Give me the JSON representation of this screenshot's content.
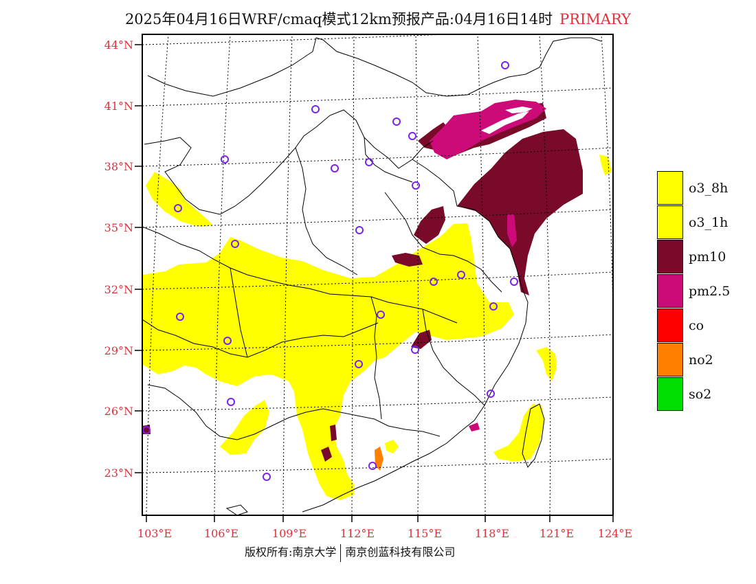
{
  "header": {
    "title": "2025年04月16日WRF/cmaq模式12km预报产品:04月16日14时",
    "tag": "PRIMARY"
  },
  "map": {
    "lat_labels": [
      "44°N",
      "41°N",
      "38°N",
      "35°N",
      "32°N",
      "29°N",
      "26°N",
      "23°N"
    ],
    "lon_labels": [
      "103°E",
      "106°E",
      "109°E",
      "112°E",
      "115°E",
      "118°E",
      "121°E",
      "124°E"
    ],
    "colors": {
      "o3": "#ffff00",
      "pm10": "#7a0a2a",
      "pm25": "#cc0a78",
      "no2": "#ff7f00",
      "station_circle": "#7a22ee",
      "graticule": "#000000"
    }
  },
  "legend": {
    "items": [
      {
        "label": "o3_8h",
        "color": "#ffff00"
      },
      {
        "label": "o3_1h",
        "color": "#ffff00"
      },
      {
        "label": "pm10",
        "color": "#7a0a2a"
      },
      {
        "label": "pm2.5",
        "color": "#cc0a78"
      },
      {
        "label": "co",
        "color": "#ff0000"
      },
      {
        "label": "no2",
        "color": "#ff7f00"
      },
      {
        "label": "so2",
        "color": "#00dd00"
      }
    ]
  },
  "footer": {
    "left": "版权所有:南京大学",
    "right": "南京创蓝科技有限公司"
  }
}
